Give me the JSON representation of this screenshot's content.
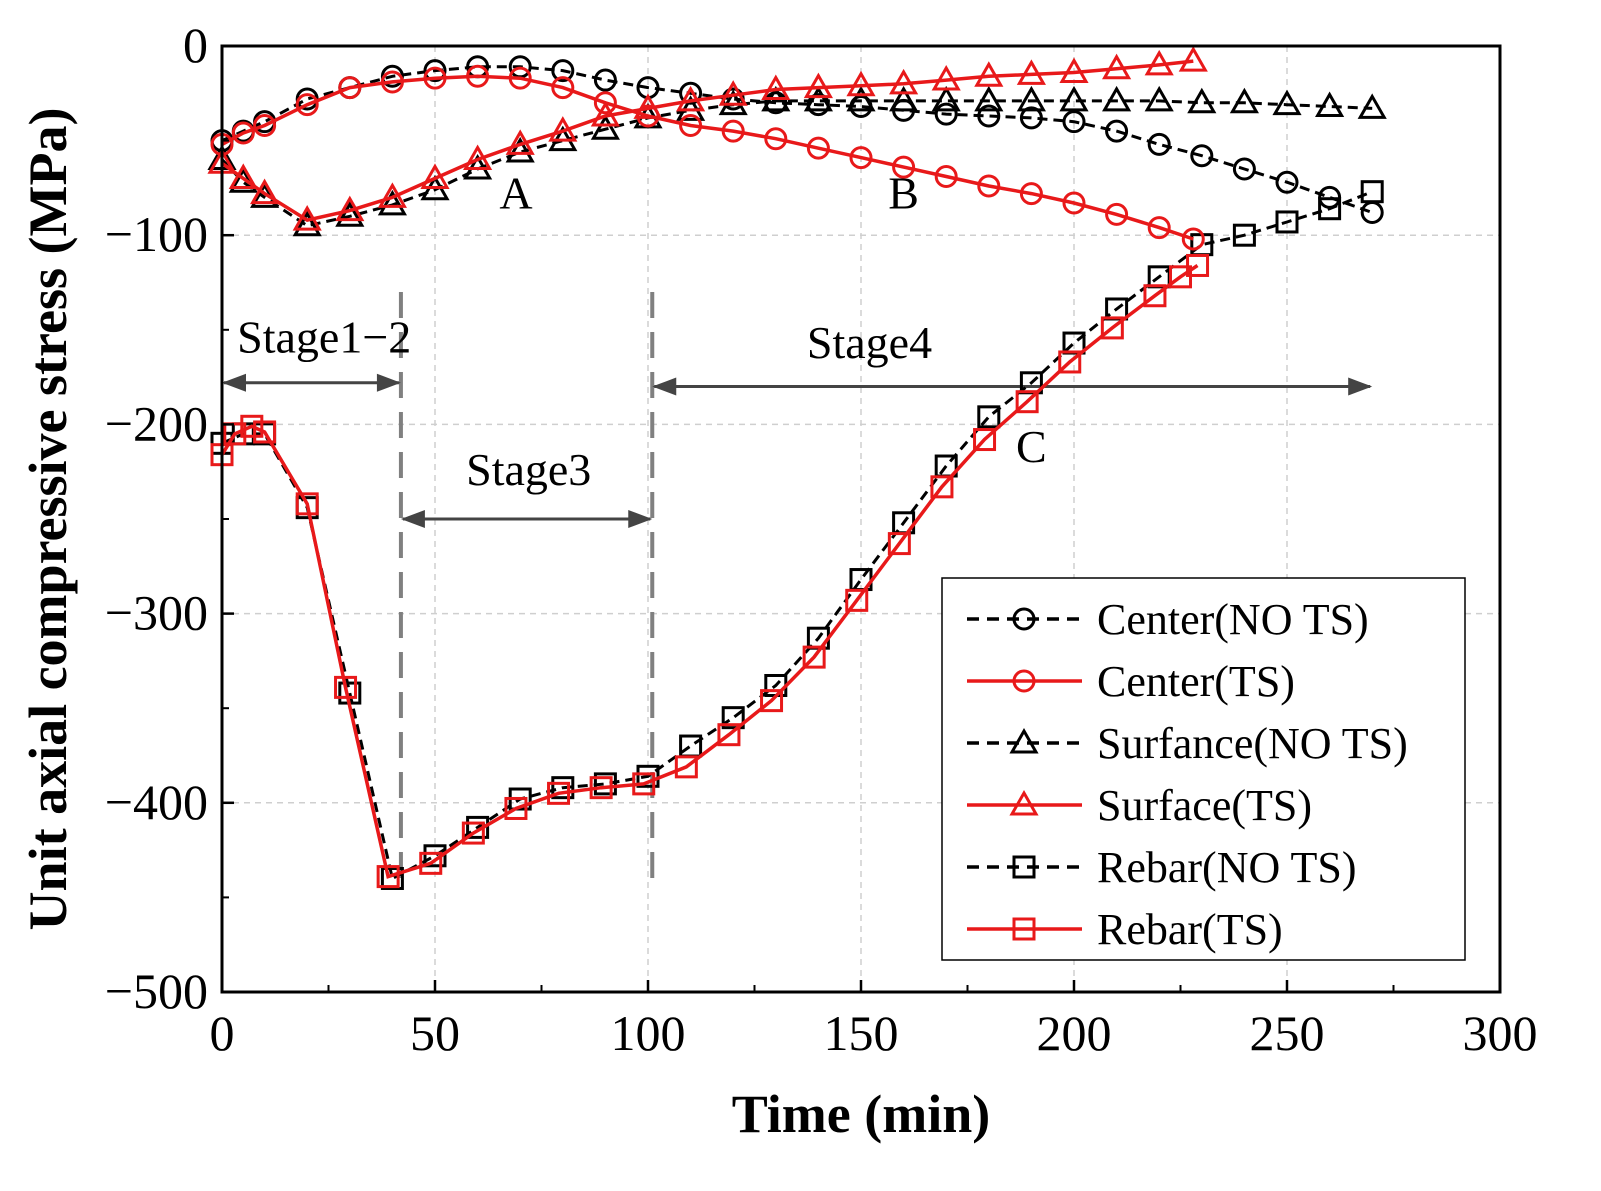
{
  "chart_data": {
    "type": "line",
    "title": "",
    "xlabel": "Time (min)",
    "ylabel": "Unit axial compressive stress (MPa)",
    "xlim": [
      0,
      300
    ],
    "ylim": [
      -500,
      0
    ],
    "xticks": [
      0,
      50,
      100,
      150,
      200,
      250,
      300
    ],
    "yticks": [
      0,
      -100,
      -200,
      -300,
      -400,
      -500
    ],
    "xtick_labels": [
      "0",
      "50",
      "100",
      "150",
      "200",
      "250",
      "300"
    ],
    "ytick_labels": [
      "0",
      "−100",
      "−200",
      "−300",
      "−400",
      "−500"
    ],
    "grid": true,
    "legend_position": "bottom-right",
    "series": [
      {
        "name": "Center(NO TS)",
        "color": "#000000",
        "line": "dashed",
        "marker": "circle",
        "x": [
          0,
          5,
          10,
          20,
          30,
          40,
          50,
          60,
          70,
          80,
          90,
          100,
          110,
          120,
          130,
          140,
          150,
          160,
          170,
          180,
          190,
          200,
          210,
          220,
          230,
          240,
          250,
          260,
          270
        ],
        "y": [
          -50,
          -45,
          -40,
          -28,
          -22,
          -16,
          -13,
          -11,
          -11,
          -13,
          -18,
          -22,
          -25,
          -28,
          -30,
          -31,
          -32,
          -34,
          -36,
          -37,
          -38,
          -40,
          -45,
          -52,
          -58,
          -65,
          -72,
          -80,
          -88
        ]
      },
      {
        "name": "Center(TS)",
        "color": "#e8191a",
        "line": "solid",
        "marker": "circle",
        "x": [
          0,
          5,
          10,
          20,
          30,
          40,
          50,
          60,
          70,
          80,
          90,
          100,
          110,
          120,
          130,
          140,
          150,
          160,
          170,
          180,
          190,
          200,
          210,
          220,
          228
        ],
        "y": [
          -52,
          -46,
          -42,
          -31,
          -22,
          -19,
          -17,
          -16,
          -17,
          -22,
          -30,
          -37,
          -42,
          -45,
          -49,
          -54,
          -59,
          -64,
          -69,
          -74,
          -78,
          -83,
          -89,
          -96,
          -102
        ]
      },
      {
        "name": "Surfance(NO TS)",
        "color": "#000000",
        "line": "dashed",
        "marker": "triangle",
        "x": [
          0,
          5,
          10,
          20,
          30,
          40,
          50,
          60,
          70,
          80,
          90,
          100,
          110,
          120,
          130,
          140,
          150,
          160,
          170,
          180,
          190,
          200,
          210,
          220,
          230,
          240,
          250,
          260,
          270
        ],
        "y": [
          -60,
          -72,
          -80,
          -95,
          -90,
          -84,
          -76,
          -65,
          -56,
          -50,
          -44,
          -38,
          -34,
          -31,
          -29,
          -29,
          -29,
          -29,
          -29,
          -29,
          -29,
          -29,
          -29,
          -29,
          -30,
          -30,
          -31,
          -32,
          -33
        ]
      },
      {
        "name": "Surface(TS)",
        "color": "#e8191a",
        "line": "solid",
        "marker": "triangle",
        "x": [
          0,
          5,
          10,
          20,
          30,
          40,
          50,
          60,
          70,
          80,
          90,
          100,
          110,
          120,
          130,
          140,
          150,
          160,
          170,
          180,
          190,
          200,
          210,
          220,
          228
        ],
        "y": [
          -62,
          -70,
          -78,
          -92,
          -87,
          -80,
          -70,
          -60,
          -52,
          -45,
          -37,
          -33,
          -29,
          -26,
          -23,
          -22,
          -21,
          -20,
          -18,
          -16,
          -15,
          -14,
          -12,
          -10,
          -8
        ]
      },
      {
        "name": "Rebar(NO TS)",
        "color": "#000000",
        "line": "dashed",
        "marker": "square",
        "x": [
          0,
          5,
          10,
          20,
          30,
          40,
          50,
          60,
          70,
          80,
          90,
          100,
          110,
          120,
          130,
          140,
          150,
          160,
          170,
          180,
          190,
          200,
          210,
          220,
          230,
          240,
          250,
          260,
          270
        ],
        "y": [
          -210,
          -205,
          -205,
          -244,
          -342,
          -440,
          -428,
          -413,
          -398,
          -392,
          -390,
          -386,
          -370,
          -355,
          -338,
          -313,
          -282,
          -252,
          -222,
          -196,
          -178,
          -157,
          -139,
          -122,
          -105,
          -100,
          -93,
          -86,
          -77
        ]
      },
      {
        "name": "Rebar(TS)",
        "color": "#e8191a",
        "line": "solid",
        "marker": "square",
        "x": [
          0,
          3,
          7,
          10,
          20,
          29,
          39,
          49,
          59,
          69,
          79,
          89,
          99,
          109,
          119,
          129,
          139,
          149,
          159,
          169,
          179,
          189,
          199,
          209,
          219,
          225,
          229
        ],
        "y": [
          -216,
          -205,
          -201,
          -204,
          -242,
          -339,
          -439,
          -432,
          -416,
          -403,
          -395,
          -392,
          -390,
          -381,
          -364,
          -346,
          -323,
          -293,
          -263,
          -233,
          -208,
          -188,
          -167,
          -149,
          -132,
          -122,
          -116
        ]
      }
    ],
    "annotations": [
      {
        "text": "A",
        "x": 69,
        "y": -86
      },
      {
        "text": "B",
        "x": 160,
        "y": -86
      },
      {
        "text": "C",
        "x": 190,
        "y": -220
      },
      {
        "text": "Stage1−2",
        "x": 24,
        "y": -162
      },
      {
        "text": "Stage3",
        "x": 72,
        "y": -232
      },
      {
        "text": "Stage4",
        "x": 152,
        "y": -165
      }
    ],
    "stage_dividers": [
      42,
      101
    ],
    "stage_arrows": [
      {
        "label": "Stage1−2",
        "x1": 0,
        "x2": 42,
        "y": -178
      },
      {
        "label": "Stage3",
        "x1": 42,
        "x2": 101,
        "y": -250
      },
      {
        "label": "Stage4",
        "x1": 101,
        "x2": 270,
        "y": -180
      }
    ]
  }
}
